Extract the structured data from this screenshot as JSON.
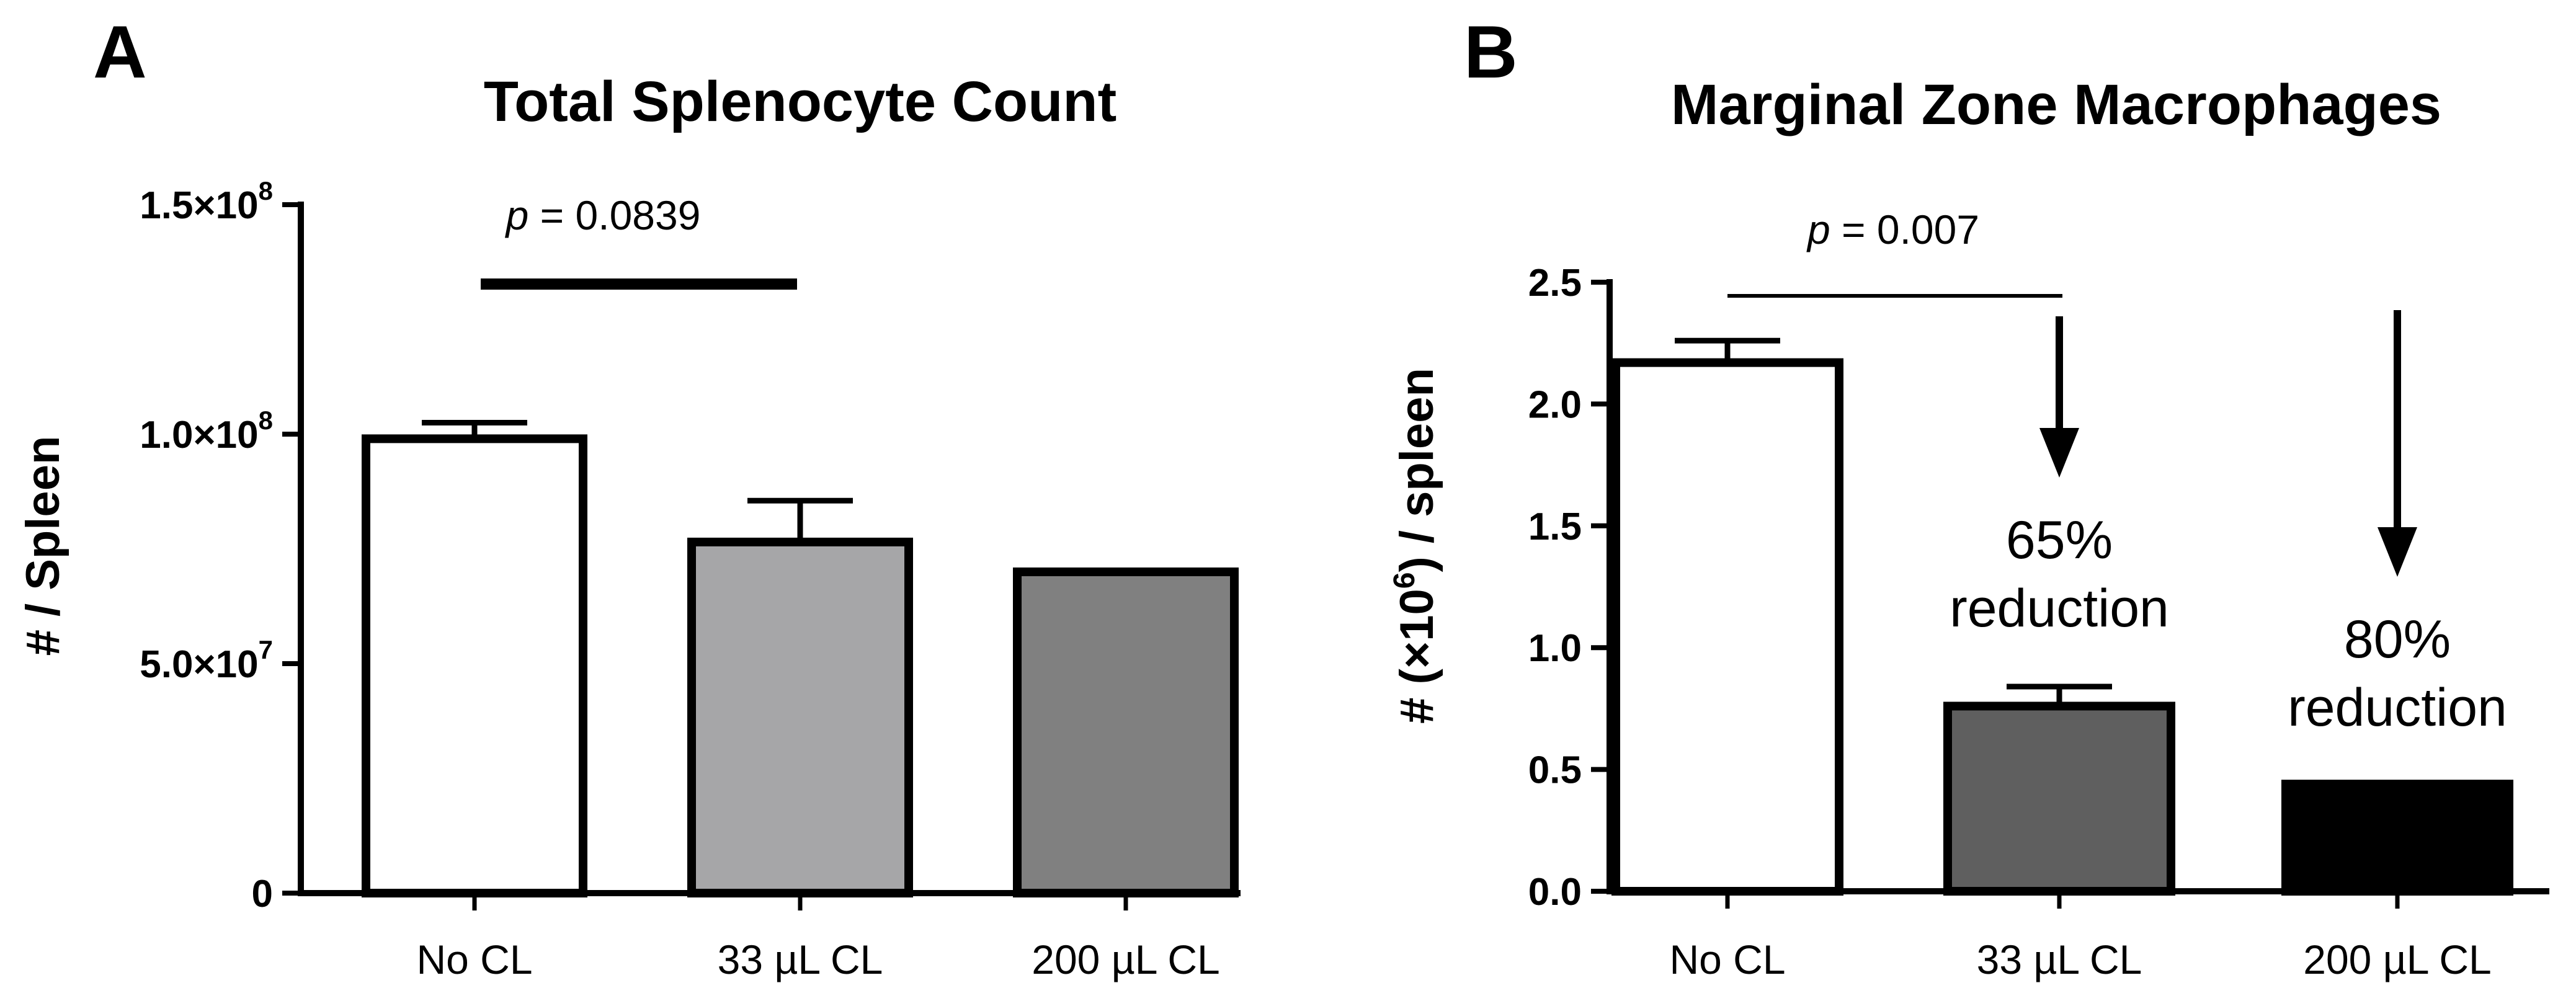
{
  "chart_data": [
    {
      "panel": "A",
      "type": "bar",
      "title": "Total Splenocyte Count",
      "xlabel": "",
      "ylabel": "# / Spleen",
      "ylim": [
        0,
        150000000
      ],
      "categories": [
        "No CL",
        "33 µL CL",
        "200 µL CL"
      ],
      "values": [
        99000000,
        76500000,
        70000000
      ],
      "errors": [
        3500000,
        9000000,
        0
      ],
      "colors": [
        "#ffffff",
        "#a6a6a8",
        "#808080"
      ],
      "ticks": [
        {
          "value": 0,
          "base": "0",
          "exp": ""
        },
        {
          "value": 50000000,
          "base": "5.0×10",
          "exp": "7"
        },
        {
          "value": 100000000,
          "base": "1.0×10",
          "exp": "8"
        },
        {
          "value": 150000000,
          "base": "1.5×10",
          "exp": "8"
        }
      ],
      "significance": {
        "from": 0,
        "to": 1,
        "p_label": "p",
        "p_value": " = 0.0839"
      }
    },
    {
      "panel": "B",
      "type": "bar",
      "title": "Marginal Zone Macrophages",
      "xlabel": "",
      "ylabel_prefix": "# (×10",
      "ylabel_exp": "6",
      "ylabel_suffix": ") / spleen",
      "ylim": [
        0,
        2.5
      ],
      "categories": [
        "No CL",
        "33 µL CL",
        "200 µL CL"
      ],
      "values": [
        2.17,
        0.76,
        0.44
      ],
      "errors": [
        0.09,
        0.08,
        0
      ],
      "colors": [
        "#ffffff",
        "#5f5f5f",
        "#000000"
      ],
      "ticks": [
        {
          "value": 0.0,
          "label": "0.0"
        },
        {
          "value": 0.5,
          "label": "0.5"
        },
        {
          "value": 1.0,
          "label": "1.0"
        },
        {
          "value": 1.5,
          "label": "1.5"
        },
        {
          "value": 2.0,
          "label": "2.0"
        },
        {
          "value": 2.5,
          "label": "2.5"
        }
      ],
      "significance": {
        "from": 0,
        "to": 1,
        "p_label": "p",
        "p_value": " = 0.007"
      },
      "annotations": [
        {
          "category_index": 1,
          "line1": "65%",
          "line2": "reduction"
        },
        {
          "category_index": 2,
          "line1": "80%",
          "line2": "reduction"
        }
      ]
    }
  ]
}
